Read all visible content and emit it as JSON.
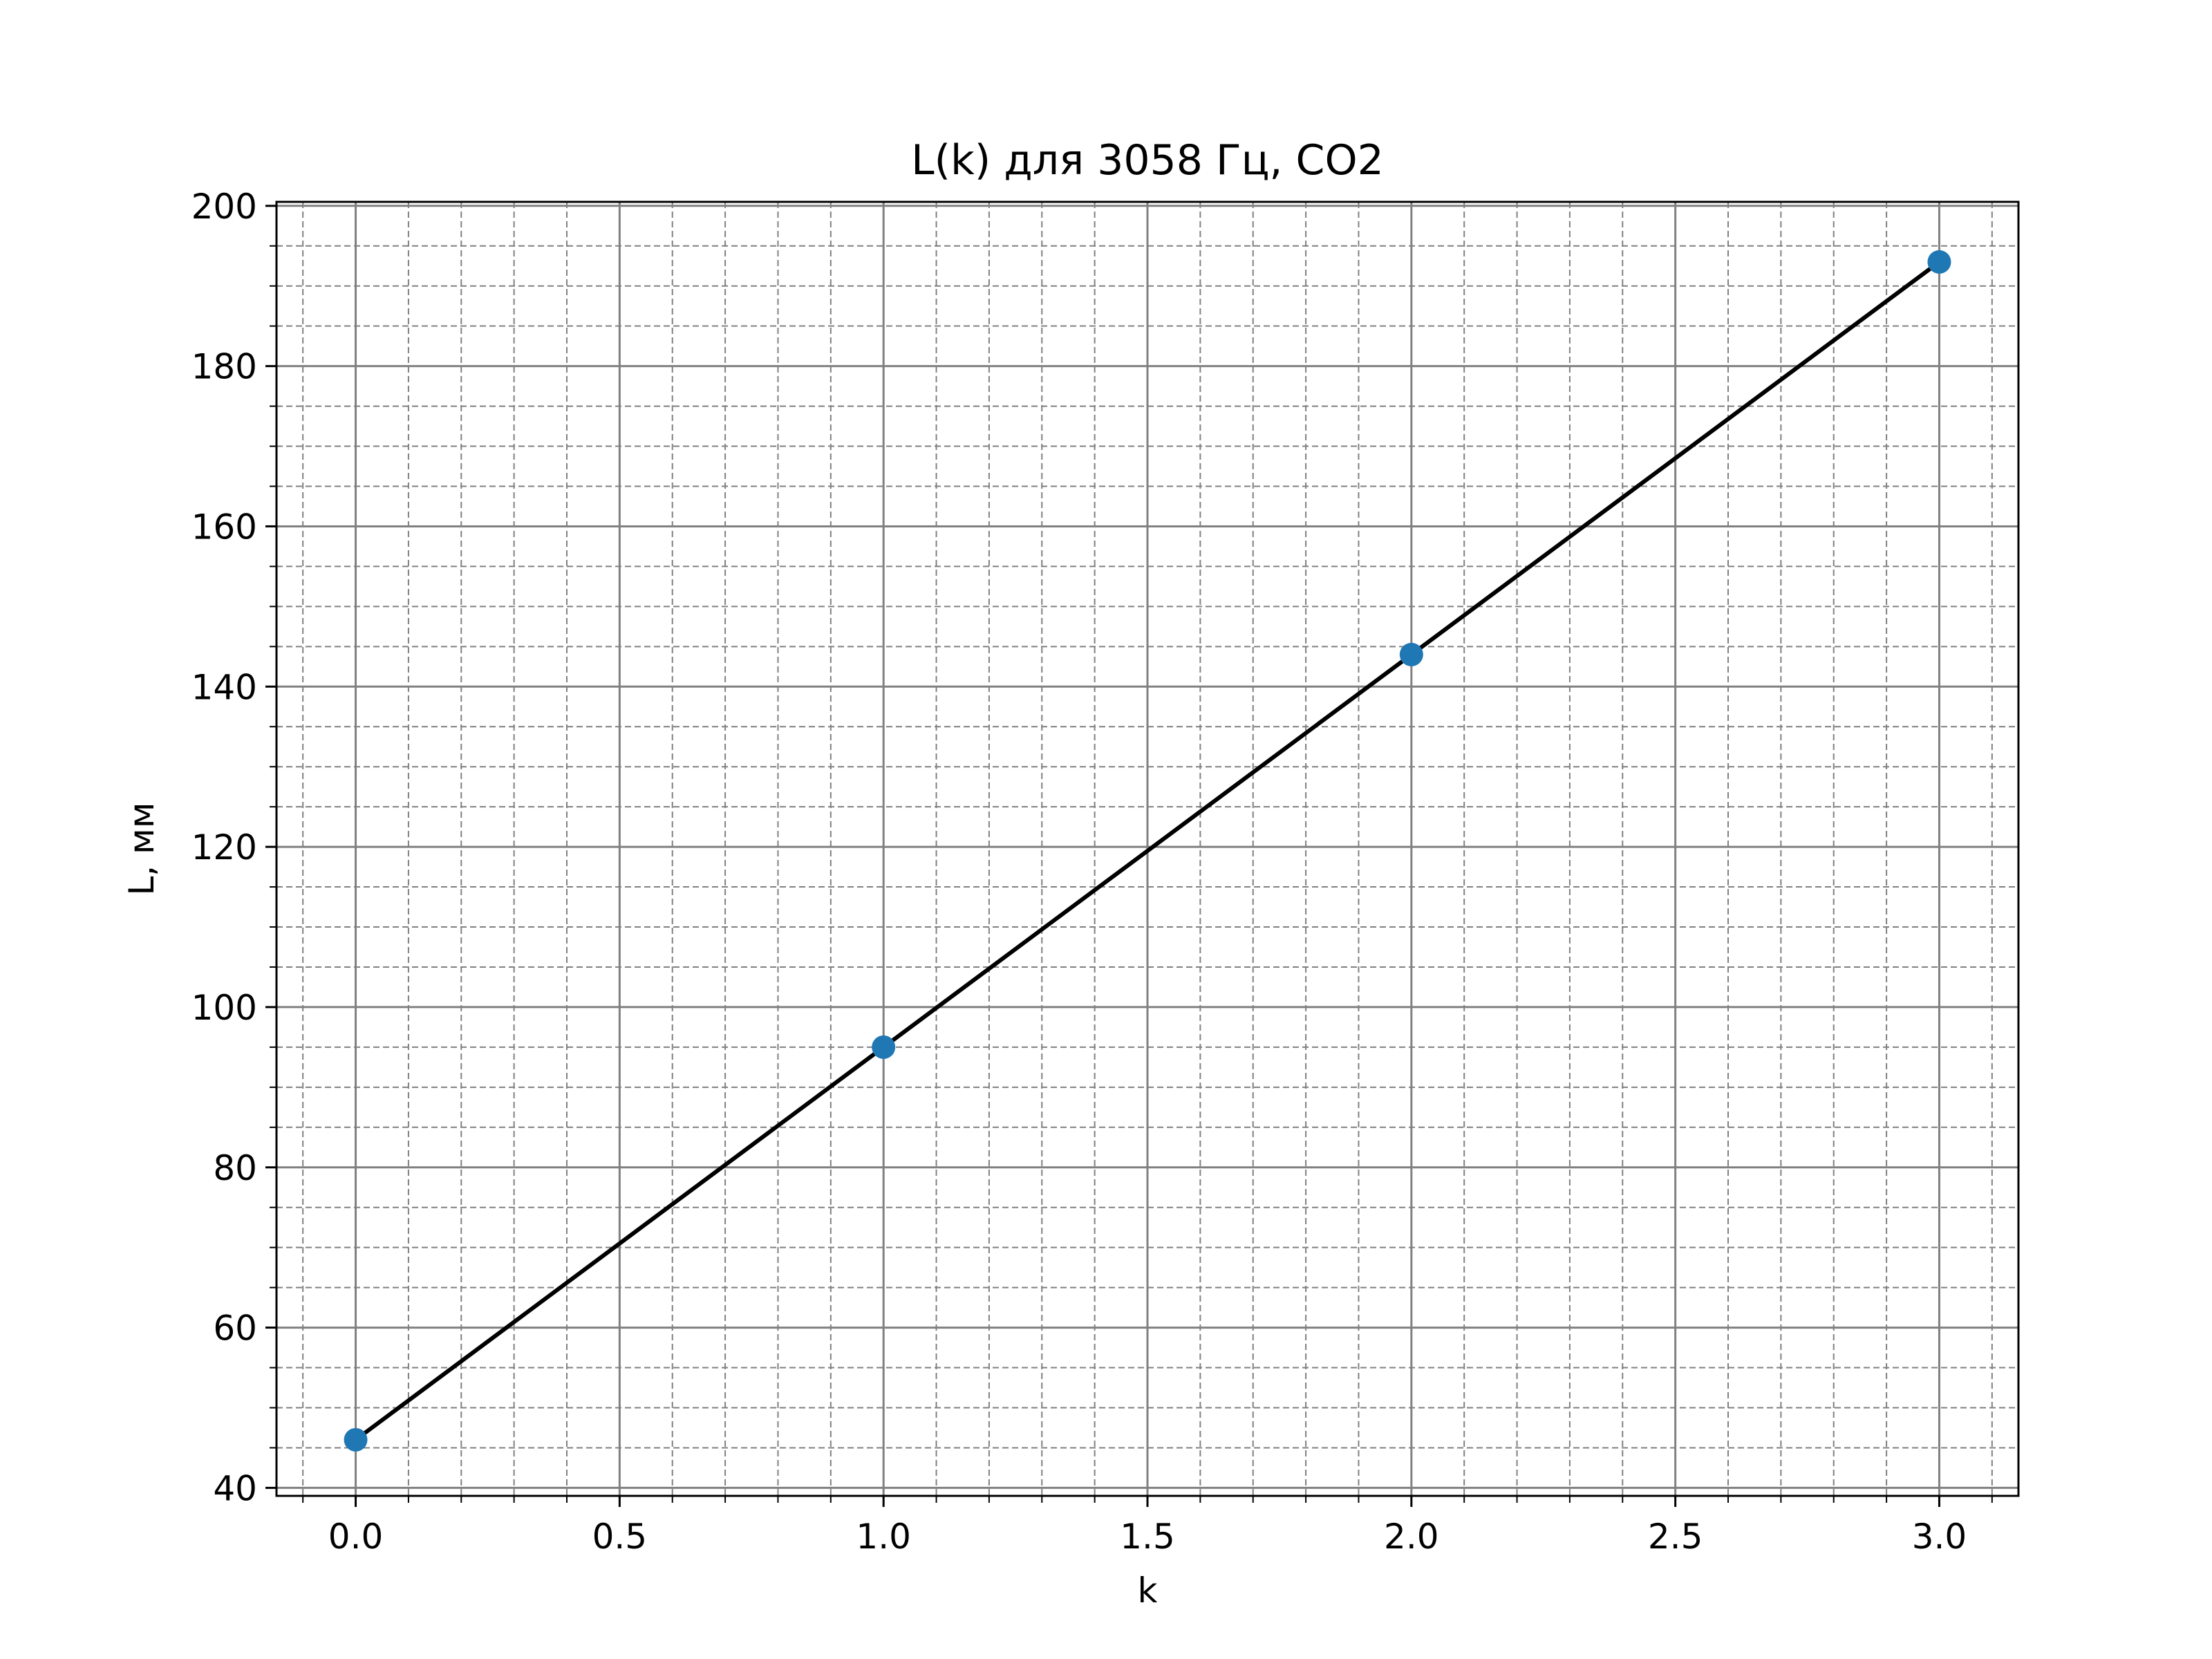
{
  "chart_data": {
    "type": "scatter",
    "title": "L(k) для 3058 Гц, CO2",
    "xlabel": "k",
    "ylabel": "L, мм",
    "xlim": [
      -0.15,
      3.15
    ],
    "ylim": [
      39,
      200.5
    ],
    "xticks": [
      0.0,
      0.5,
      1.0,
      1.5,
      2.0,
      2.5,
      3.0
    ],
    "xtick_labels": [
      "0.0",
      "0.5",
      "1.0",
      "1.5",
      "2.0",
      "2.5",
      "3.0"
    ],
    "yticks": [
      40,
      60,
      80,
      100,
      120,
      140,
      160,
      180,
      200
    ],
    "ytick_labels": [
      "40",
      "60",
      "80",
      "100",
      "120",
      "140",
      "160",
      "180",
      "200"
    ],
    "x_minor_step": 0.1,
    "y_minor_step": 5,
    "grid": {
      "major": true,
      "minor": true,
      "minor_style": "dashed"
    },
    "series": [
      {
        "kind": "scatter",
        "color": "#1f77b4",
        "x": [
          0,
          1,
          2,
          3
        ],
        "y": [
          46,
          95,
          144,
          193
        ]
      },
      {
        "kind": "line",
        "color": "#000000",
        "x": [
          0,
          3
        ],
        "y": [
          46,
          193
        ]
      }
    ]
  }
}
